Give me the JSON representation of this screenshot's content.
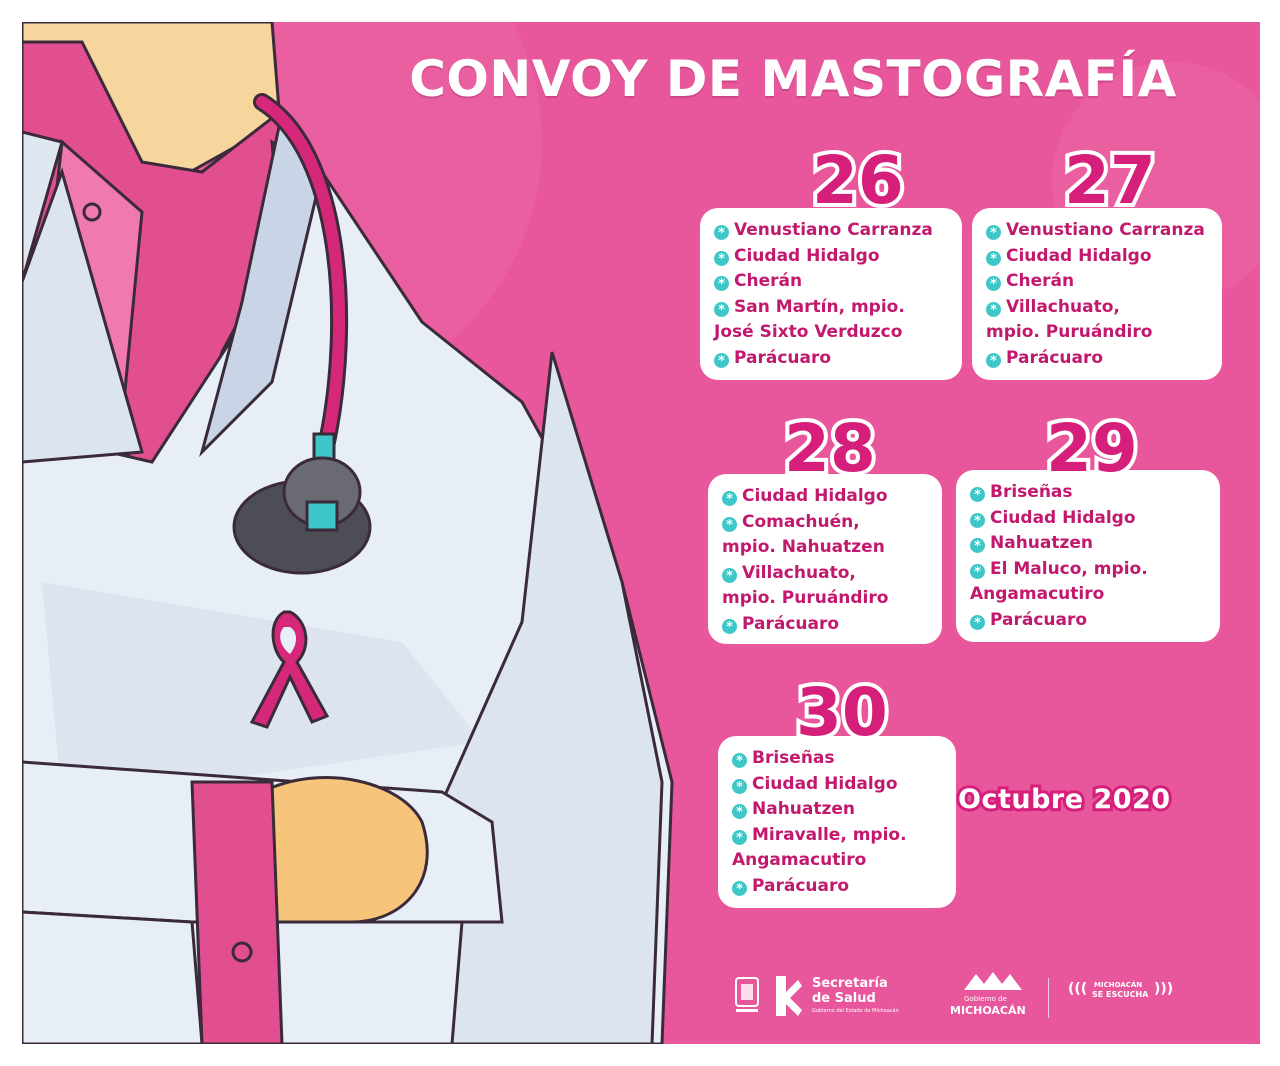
{
  "poster": {
    "title": "CONVOY DE MASTOGRAFÍA",
    "month": "Octubre 2020"
  },
  "days": [
    {
      "number": "26",
      "locations": [
        {
          "text": "Venustiano Carranza",
          "bullet": true
        },
        {
          "text": "Ciudad Hidalgo",
          "bullet": true
        },
        {
          "text": "Cherán",
          "bullet": true
        },
        {
          "text": "San Martín, mpio.",
          "bullet": true
        },
        {
          "text": "José Sixto Verduzco",
          "bullet": false
        },
        {
          "text": "Parácuaro",
          "bullet": true
        }
      ]
    },
    {
      "number": "27",
      "locations": [
        {
          "text": "Venustiano Carranza",
          "bullet": true
        },
        {
          "text": "Ciudad Hidalgo",
          "bullet": true
        },
        {
          "text": "Cherán",
          "bullet": true
        },
        {
          "text": "Villachuato,",
          "bullet": true
        },
        {
          "text": "mpio. Puruándiro",
          "bullet": false
        },
        {
          "text": "Parácuaro",
          "bullet": true
        }
      ]
    },
    {
      "number": "28",
      "locations": [
        {
          "text": "Ciudad Hidalgo",
          "bullet": true
        },
        {
          "text": "Comachuén,",
          "bullet": true
        },
        {
          "text": "mpio. Nahuatzen",
          "bullet": false
        },
        {
          "text": "Villachuato,",
          "bullet": true
        },
        {
          "text": "mpio. Puruándiro",
          "bullet": false
        },
        {
          "text": "Parácuaro",
          "bullet": true
        }
      ]
    },
    {
      "number": "29",
      "locations": [
        {
          "text": "Briseñas",
          "bullet": true
        },
        {
          "text": "Ciudad Hidalgo",
          "bullet": true
        },
        {
          "text": "Nahuatzen",
          "bullet": true
        },
        {
          "text": "El Maluco, mpio.",
          "bullet": true
        },
        {
          "text": "Angamacutiro",
          "bullet": false
        },
        {
          "text": "Parácuaro",
          "bullet": true
        }
      ]
    },
    {
      "number": "30",
      "locations": [
        {
          "text": "Briseñas",
          "bullet": true
        },
        {
          "text": "Ciudad Hidalgo",
          "bullet": true
        },
        {
          "text": "Nahuatzen",
          "bullet": true
        },
        {
          "text": "Miravalle, mpio.",
          "bullet": true
        },
        {
          "text": "Angamacutiro",
          "bullet": false
        },
        {
          "text": "Parácuaro",
          "bullet": true
        }
      ]
    }
  ],
  "logos": {
    "secretaria_line1": "Secretaría",
    "secretaria_line2": "de Salud",
    "secretaria_line3": "Gobierno del Estado de Michoacán",
    "gobierno_line1": "Gobierno de",
    "gobierno_line2": "MICHOACÁN",
    "escucha_line1": "MICHOACÁN",
    "escucha_line2": "SE ESCUCHA"
  },
  "colors": {
    "background": "#e8579b",
    "accent": "#d61f7a",
    "bullet": "#3ec6c8",
    "card": "#ffffff"
  },
  "icons": {
    "bullet": "asterisk-bullet-icon",
    "ribbon": "pink-ribbon-icon",
    "stethoscope": "stethoscope-icon"
  }
}
